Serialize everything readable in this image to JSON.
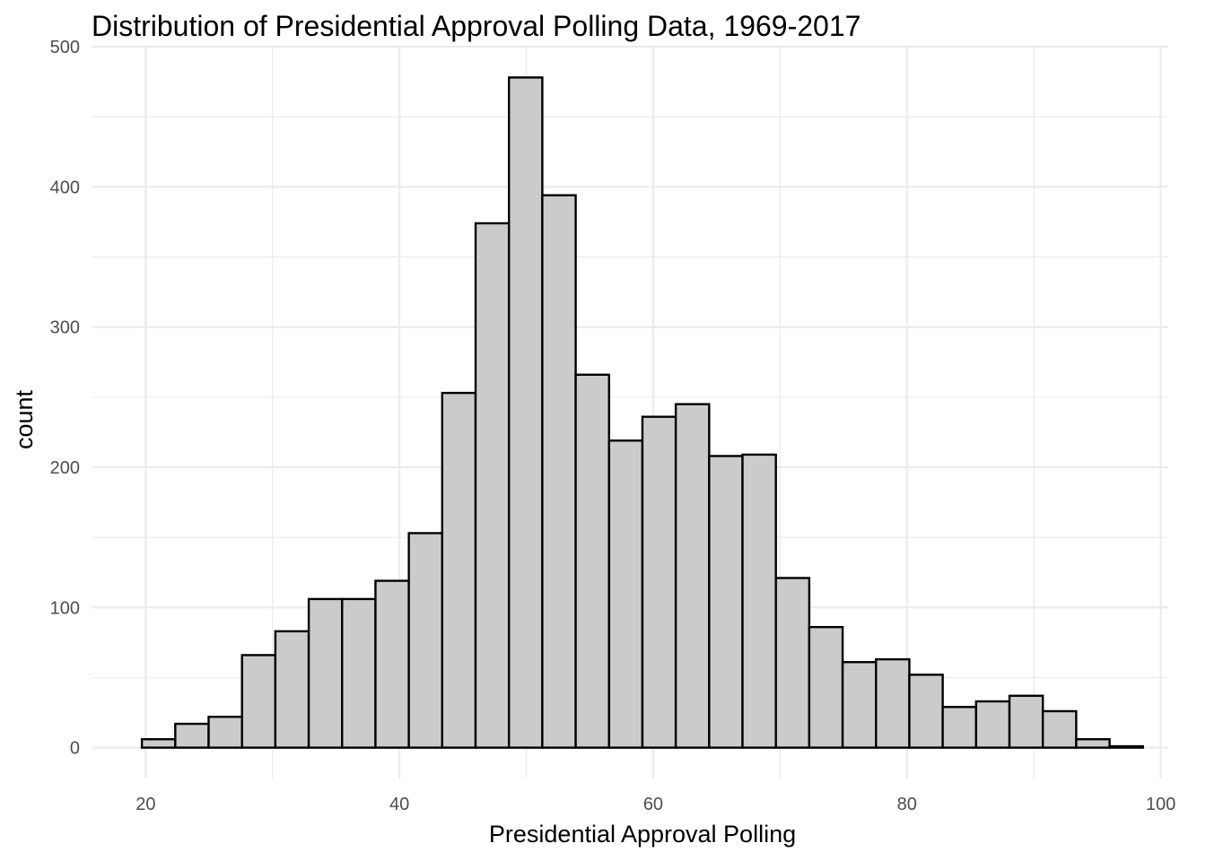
{
  "chart_data": {
    "type": "bar",
    "title": "Distribution of Presidential Approval Polling Data, 1969-2017",
    "xlabel": "Presidential Approval Polling",
    "ylabel": "count",
    "xlim": [
      15.8,
      100.6
    ],
    "ylim": [
      -22,
      500
    ],
    "x_ticks": [
      20,
      40,
      60,
      80,
      100
    ],
    "y_ticks": [
      0,
      100,
      200,
      300,
      400,
      500
    ],
    "x_tick_labels": [
      "20",
      "40",
      "60",
      "80",
      "100"
    ],
    "y_tick_labels": [
      "0",
      "100",
      "200",
      "300",
      "400",
      "500"
    ],
    "grid": true,
    "bin_width": 2.63,
    "bins": [
      {
        "x0": 19.7,
        "x1": 22.33,
        "count": 6
      },
      {
        "x0": 22.33,
        "x1": 24.96,
        "count": 17
      },
      {
        "x0": 24.96,
        "x1": 27.59,
        "count": 22
      },
      {
        "x0": 27.59,
        "x1": 30.22,
        "count": 66
      },
      {
        "x0": 30.22,
        "x1": 32.85,
        "count": 83
      },
      {
        "x0": 32.85,
        "x1": 35.48,
        "count": 106
      },
      {
        "x0": 35.48,
        "x1": 38.11,
        "count": 106
      },
      {
        "x0": 38.11,
        "x1": 40.74,
        "count": 119
      },
      {
        "x0": 40.74,
        "x1": 43.37,
        "count": 153
      },
      {
        "x0": 43.37,
        "x1": 46.0,
        "count": 253
      },
      {
        "x0": 46.0,
        "x1": 48.63,
        "count": 374
      },
      {
        "x0": 48.63,
        "x1": 51.26,
        "count": 478
      },
      {
        "x0": 51.26,
        "x1": 53.89,
        "count": 394
      },
      {
        "x0": 53.89,
        "x1": 56.52,
        "count": 266
      },
      {
        "x0": 56.52,
        "x1": 59.15,
        "count": 219
      },
      {
        "x0": 59.15,
        "x1": 61.78,
        "count": 236
      },
      {
        "x0": 61.78,
        "x1": 64.41,
        "count": 245
      },
      {
        "x0": 64.41,
        "x1": 67.04,
        "count": 208
      },
      {
        "x0": 67.04,
        "x1": 69.67,
        "count": 209
      },
      {
        "x0": 69.67,
        "x1": 72.3,
        "count": 121
      },
      {
        "x0": 72.3,
        "x1": 74.93,
        "count": 86
      },
      {
        "x0": 74.93,
        "x1": 77.56,
        "count": 61
      },
      {
        "x0": 77.56,
        "x1": 80.19,
        "count": 63
      },
      {
        "x0": 80.19,
        "x1": 82.82,
        "count": 52
      },
      {
        "x0": 82.82,
        "x1": 85.45,
        "count": 29
      },
      {
        "x0": 85.45,
        "x1": 88.08,
        "count": 33
      },
      {
        "x0": 88.08,
        "x1": 90.71,
        "count": 37
      },
      {
        "x0": 90.71,
        "x1": 93.34,
        "count": 26
      },
      {
        "x0": 93.34,
        "x1": 95.97,
        "count": 6
      },
      {
        "x0": 95.97,
        "x1": 98.6,
        "count": 1
      }
    ],
    "colors": {
      "bar_fill": "#cbcbcb",
      "bar_stroke": "#000000",
      "grid": "#ebebeb",
      "tick_text": "#4d4d4d"
    }
  }
}
